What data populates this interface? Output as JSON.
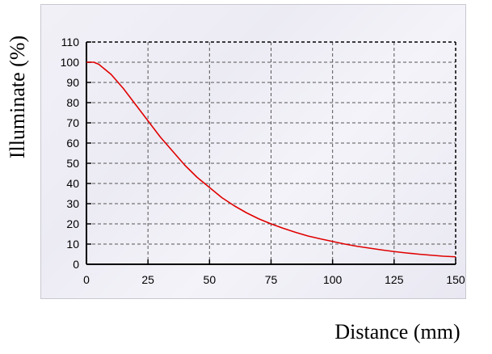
{
  "chart_data": {
    "type": "line",
    "title": "",
    "xlabel": "Distance (mm)",
    "ylabel": "Illuminate (%)",
    "xlim": [
      0,
      150
    ],
    "ylim": [
      0,
      110
    ],
    "xticks": [
      0,
      25,
      50,
      75,
      100,
      125,
      150
    ],
    "yticks": [
      0,
      10,
      20,
      30,
      40,
      50,
      60,
      70,
      80,
      90,
      100,
      110
    ],
    "grid": true,
    "series": [
      {
        "color": "#e00000",
        "x": [
          0,
          3,
          5,
          10,
          15,
          20,
          25,
          30,
          35,
          40,
          45,
          50,
          55,
          60,
          65,
          70,
          75,
          80,
          85,
          90,
          95,
          100,
          105,
          110,
          115,
          120,
          125,
          130,
          135,
          140,
          145,
          150
        ],
        "y": [
          100,
          100,
          99,
          94,
          87,
          79,
          71,
          63,
          56,
          49,
          43,
          38,
          33,
          29,
          25.5,
          22.5,
          20,
          17.8,
          15.8,
          14,
          12.6,
          11.3,
          10,
          8.9,
          8,
          7.1,
          6.3,
          5.6,
          5,
          4.5,
          4,
          3.7
        ]
      }
    ]
  }
}
